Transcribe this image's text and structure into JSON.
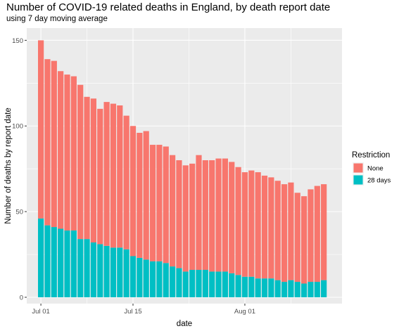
{
  "chart_data": {
    "type": "bar",
    "stacked": true,
    "title": "Number of COVID-19 related deaths in England, by death report date",
    "subtitle": "using 7 day moving average",
    "xlabel": "date",
    "ylabel": "Number of deaths by report date",
    "x_ticks": [
      "Jul 01",
      "Jul 15",
      "Aug 01"
    ],
    "y_ticks": [
      "0",
      "50",
      "100",
      "150"
    ],
    "ylim": [
      0,
      155
    ],
    "x": [
      "2021-07-01",
      "2021-07-02",
      "2021-07-03",
      "2021-07-04",
      "2021-07-05",
      "2021-07-06",
      "2021-07-07",
      "2021-07-08",
      "2021-07-09",
      "2021-07-10",
      "2021-07-11",
      "2021-07-12",
      "2021-07-13",
      "2021-07-14",
      "2021-07-15",
      "2021-07-16",
      "2021-07-17",
      "2021-07-18",
      "2021-07-19",
      "2021-07-20",
      "2021-07-21",
      "2021-07-22",
      "2021-07-23",
      "2021-07-24",
      "2021-07-25",
      "2021-07-26",
      "2021-07-27",
      "2021-07-28",
      "2021-07-29",
      "2021-07-30",
      "2021-07-31",
      "2021-08-01",
      "2021-08-02",
      "2021-08-03",
      "2021-08-04",
      "2021-08-05",
      "2021-08-06",
      "2021-08-07",
      "2021-08-08",
      "2021-08-09",
      "2021-08-10",
      "2021-08-11",
      "2021-08-12",
      "2021-08-13"
    ],
    "legend": {
      "title": "Restriction",
      "position": "right"
    },
    "series": [
      {
        "name": "None",
        "color": "#F8766D",
        "values": [
          104,
          97,
          97,
          92,
          91,
          90,
          90,
          83,
          84,
          79,
          84,
          84,
          83,
          78,
          76,
          73,
          75,
          68,
          68,
          68,
          65,
          63,
          62,
          62,
          67,
          64,
          65,
          66,
          66,
          65,
          63,
          61,
          62,
          62,
          60,
          59,
          58,
          57,
          57,
          52,
          51,
          54,
          56,
          56
        ]
      },
      {
        "name": "28 days",
        "color": "#00BFC4",
        "values": [
          46,
          42,
          41,
          40,
          39,
          39,
          34,
          34,
          32,
          31,
          30,
          29,
          29,
          28,
          24,
          23,
          22,
          21,
          21,
          20,
          18,
          17,
          15,
          16,
          16,
          16,
          15,
          15,
          15,
          14,
          13,
          12,
          12,
          11,
          11,
          11,
          10,
          9,
          10,
          9,
          8,
          9,
          9,
          10
        ]
      }
    ]
  }
}
